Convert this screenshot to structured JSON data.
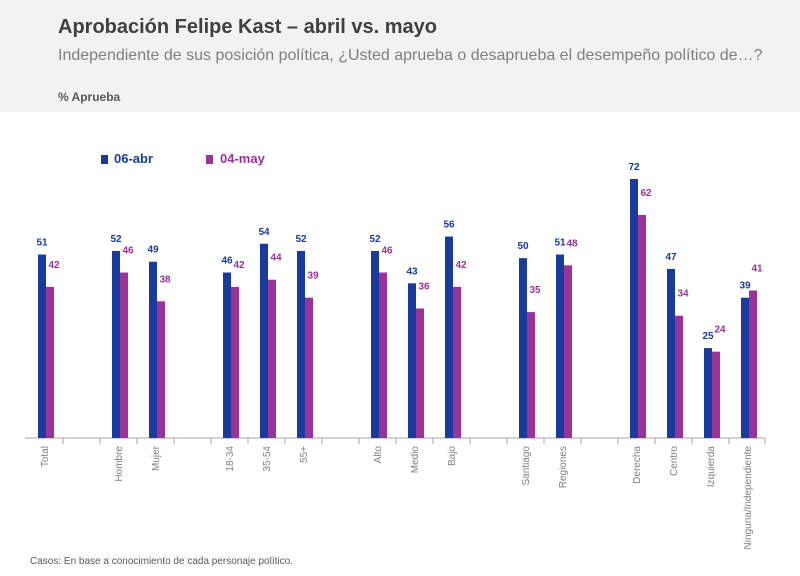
{
  "header": {
    "title": "Aprobación Felipe Kast – abril vs. mayo",
    "subtitle": "Independiente de sus posición política, ¿Usted aprueba o desaprueba el desempeño político de…?",
    "metric": "% Aprueba"
  },
  "footnote": "Casos: En base a conocimiento de cada personaje político.",
  "colors": {
    "s1": "#1a3a9c",
    "s2": "#993399",
    "axis": "#a6a6a6",
    "tick_text": "#7f7f7f"
  },
  "chart_data": {
    "type": "bar",
    "categories": [
      "Total",
      "Hombre",
      "Mujer",
      "18-34",
      "35-54",
      "55+",
      "Alto",
      "Medio",
      "Bajo",
      "Santiago",
      "Regiones",
      "Derecha",
      "Centro",
      "Izquierda",
      "Ninguna/Independiente"
    ],
    "series": [
      {
        "name": "06-abr",
        "values": [
          51,
          52,
          49,
          46,
          54,
          52,
          52,
          43,
          56,
          50,
          51,
          72,
          47,
          25,
          39
        ]
      },
      {
        "name": "04-may",
        "values": [
          42,
          46,
          38,
          42,
          44,
          39,
          46,
          36,
          42,
          35,
          48,
          62,
          34,
          24,
          41
        ]
      }
    ],
    "ylim": [
      0,
      72
    ],
    "legend_position": "top-left",
    "grid": false
  }
}
